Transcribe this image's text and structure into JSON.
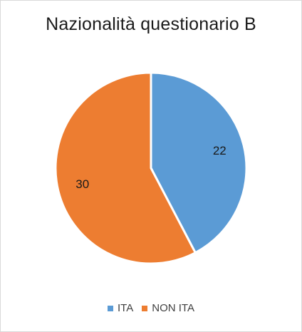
{
  "chart_data": {
    "type": "pie",
    "title": "Nazionalità questionario B",
    "categories": [
      "ITA",
      "NON ITA"
    ],
    "values": [
      22,
      30
    ],
    "colors": [
      "#5B9BD5",
      "#ED7D31"
    ],
    "data_labels": [
      "22",
      "30"
    ],
    "legend": {
      "position": "bottom",
      "entries": [
        "ITA",
        "NON ITA"
      ]
    }
  }
}
